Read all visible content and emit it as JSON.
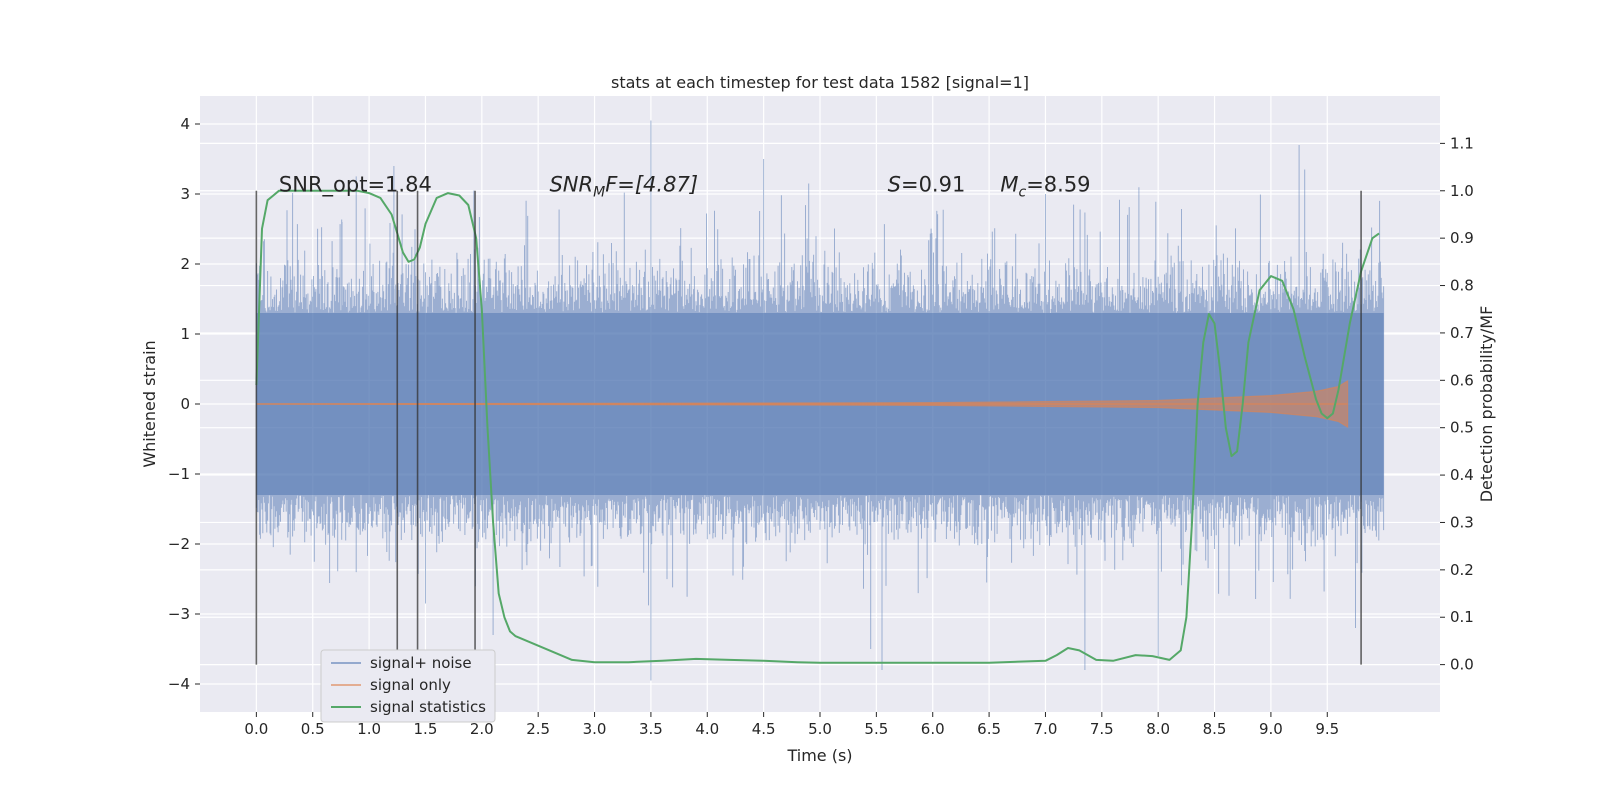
{
  "chart_data": {
    "type": "line",
    "title": "stats at each timestep for test data 1582 [signal=1]",
    "xlabel": "Time (s)",
    "ylabel": "Whitened strain",
    "y2label": "Detection probability/MF",
    "xlim": [
      -0.5,
      10.5
    ],
    "ylim": [
      -4.4,
      4.4
    ],
    "y2lim": [
      -0.1,
      1.2
    ],
    "xticks": [
      "0.0",
      "0.5",
      "1.0",
      "1.5",
      "2.0",
      "2.5",
      "3.0",
      "3.5",
      "4.0",
      "4.5",
      "5.0",
      "5.5",
      "6.0",
      "6.5",
      "7.0",
      "7.5",
      "8.0",
      "8.5",
      "9.0",
      "9.5"
    ],
    "yticks": [
      "4",
      "3",
      "2",
      "1",
      "0",
      "−1",
      "−2",
      "−3",
      "−4"
    ],
    "y2ticks": [
      "1.1",
      "1.0",
      "0.9",
      "0.8",
      "0.7",
      "0.6",
      "0.5",
      "0.4",
      "0.3",
      "0.2",
      "0.1",
      "0.0"
    ],
    "grid": true,
    "legend_position": "bottom-left",
    "colors": {
      "noise": "#4c72b0",
      "signal": "#dd8452",
      "stats": "#55a868",
      "vlines": "#333333",
      "background": "#eaeaf2",
      "grid": "#ffffff"
    },
    "annotations": [
      {
        "text": "SNR_opt=1.84",
        "x": 0.2,
        "y": 3.15
      },
      {
        "text_main": "SNR",
        "text_sub": "M",
        "text_rest": "F=[4.87]",
        "x": 2.6,
        "y": 3.15
      },
      {
        "text_main": "S",
        "text_rest": "=0.91",
        "x": 5.6,
        "y": 3.15
      },
      {
        "text_main": "M",
        "text_sub": "c",
        "text_rest": "=8.59",
        "x": 6.6,
        "y": 3.15
      }
    ],
    "vlines": [
      0.0,
      1.25,
      1.43,
      1.94,
      9.8
    ],
    "vline_range_y2": [
      0.0,
      1.0
    ],
    "series": [
      {
        "name": "signal+ noise",
        "kind": "noise_band",
        "x_range": [
          0.0,
          10.0
        ],
        "band_limits": [
          -1.9,
          1.9
        ],
        "notable_spikes": [
          [
            0.76,
            2.6
          ],
          [
            1.22,
            3.4
          ],
          [
            1.5,
            -2.85
          ],
          [
            1.93,
            3.05
          ],
          [
            2.1,
            -3.3
          ],
          [
            3.5,
            4.05
          ],
          [
            3.5,
            -3.95
          ],
          [
            4.5,
            3.5
          ],
          [
            4.9,
            3.15
          ],
          [
            5.55,
            -3.8
          ],
          [
            5.45,
            -3.5
          ],
          [
            7.0,
            3.0
          ],
          [
            7.35,
            -3.8
          ],
          [
            8.0,
            -3.6
          ],
          [
            9.25,
            3.7
          ],
          [
            9.3,
            3.35
          ],
          [
            9.75,
            -3.2
          ]
        ]
      },
      {
        "name": "signal only",
        "kind": "signal",
        "x_range": [
          0.0,
          9.68
        ],
        "envelope": [
          [
            0.0,
            0.0
          ],
          [
            6.0,
            0.02
          ],
          [
            8.0,
            0.05
          ],
          [
            9.0,
            0.12
          ],
          [
            9.4,
            0.18
          ],
          [
            9.6,
            0.25
          ],
          [
            9.68,
            0.33
          ]
        ]
      },
      {
        "name": "signal statistics",
        "kind": "stats",
        "axis": "y2",
        "x": [
          0.0,
          0.05,
          0.1,
          0.15,
          0.2,
          0.3,
          0.5,
          0.7,
          0.9,
          1.0,
          1.1,
          1.2,
          1.25,
          1.3,
          1.35,
          1.4,
          1.45,
          1.5,
          1.6,
          1.7,
          1.8,
          1.88,
          1.95,
          2.0,
          2.05,
          2.1,
          2.15,
          2.2,
          2.25,
          2.3,
          2.35,
          2.4,
          2.6,
          2.8,
          3.0,
          3.3,
          3.6,
          3.9,
          4.2,
          4.5,
          4.8,
          5.0,
          5.5,
          6.0,
          6.5,
          7.0,
          7.1,
          7.2,
          7.3,
          7.45,
          7.6,
          7.8,
          7.95,
          8.1,
          8.2,
          8.25,
          8.3,
          8.35,
          8.4,
          8.45,
          8.5,
          8.55,
          8.6,
          8.65,
          8.7,
          8.75,
          8.8,
          8.9,
          9.0,
          9.1,
          9.2,
          9.3,
          9.4,
          9.45,
          9.5,
          9.55,
          9.6,
          9.7,
          9.8,
          9.9,
          9.96
        ],
        "values": [
          0.59,
          0.92,
          0.98,
          0.99,
          1.0,
          1.0,
          1.0,
          1.0,
          1.0,
          0.995,
          0.985,
          0.95,
          0.91,
          0.87,
          0.85,
          0.855,
          0.88,
          0.93,
          0.985,
          0.995,
          0.99,
          0.97,
          0.9,
          0.75,
          0.5,
          0.3,
          0.15,
          0.1,
          0.07,
          0.06,
          0.055,
          0.05,
          0.03,
          0.01,
          0.005,
          0.005,
          0.008,
          0.012,
          0.01,
          0.008,
          0.005,
          0.004,
          0.004,
          0.004,
          0.004,
          0.008,
          0.02,
          0.035,
          0.03,
          0.01,
          0.008,
          0.02,
          0.018,
          0.01,
          0.03,
          0.1,
          0.3,
          0.55,
          0.68,
          0.74,
          0.72,
          0.62,
          0.5,
          0.44,
          0.45,
          0.55,
          0.68,
          0.79,
          0.82,
          0.81,
          0.75,
          0.65,
          0.56,
          0.53,
          0.52,
          0.53,
          0.58,
          0.72,
          0.83,
          0.9,
          0.91
        ]
      }
    ]
  }
}
